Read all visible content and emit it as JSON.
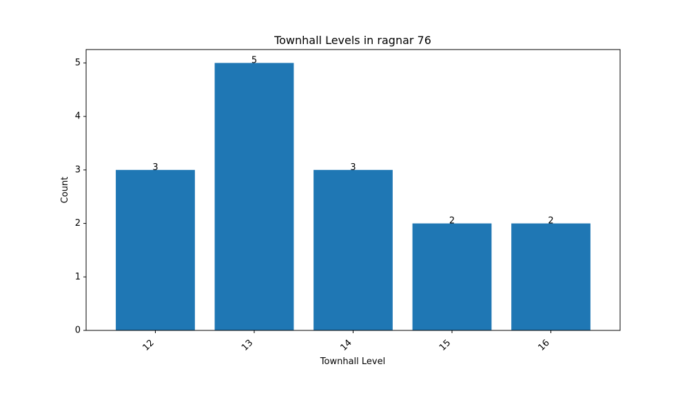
{
  "chart_data": {
    "type": "bar",
    "title": "Townhall Levels in ragnar 76",
    "xlabel": "Townhall Level",
    "ylabel": "Count",
    "categories": [
      "12",
      "13",
      "14",
      "15",
      "16"
    ],
    "values": [
      3,
      5,
      3,
      2,
      2
    ],
    "data_labels": [
      "3",
      "5",
      "3",
      "2",
      "2"
    ],
    "ylim": [
      0,
      5.25
    ],
    "yticks": [
      0,
      1,
      2,
      3,
      4,
      5
    ],
    "grid": false,
    "bar_color": "#1f77b4"
  }
}
